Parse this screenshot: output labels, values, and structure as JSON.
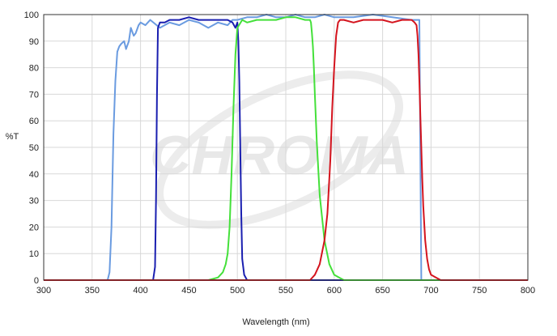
{
  "chart_data": {
    "type": "line",
    "title": "",
    "xlabel": "Wavelength (nm)",
    "ylabel": "%T",
    "xlim": [
      300,
      800
    ],
    "ylim": [
      0,
      100
    ],
    "xticks": [
      "300",
      "350",
      "400",
      "450",
      "500",
      "550",
      "600",
      "650",
      "700",
      "750",
      "800"
    ],
    "yticks": [
      "0",
      "10",
      "20",
      "30",
      "40",
      "50",
      "60",
      "70",
      "80",
      "90",
      "100"
    ],
    "grid": true,
    "legend": "none",
    "watermark": "CHROMA",
    "series": [
      {
        "color": "#6a9be0",
        "x": [
          300,
          366,
          368,
          370,
          372,
          374,
          376,
          378,
          380,
          383,
          385,
          388,
          390,
          393,
          395,
          398,
          400,
          405,
          410,
          420,
          430,
          440,
          450,
          460,
          470,
          480,
          490,
          495,
          500,
          510,
          520,
          530,
          540,
          550,
          560,
          570,
          580,
          590,
          600,
          620,
          640,
          660,
          680,
          688,
          690,
          700,
          800
        ],
        "y": [
          0,
          0,
          3,
          20,
          55,
          75,
          86,
          88,
          89,
          90,
          87,
          90,
          95,
          92,
          93,
          96,
          97,
          96,
          98,
          95,
          97,
          96,
          98,
          97,
          95,
          97,
          96,
          98,
          98,
          99,
          99,
          100,
          99,
          99,
          100,
          99,
          99,
          100,
          99,
          99,
          100,
          99,
          98,
          98,
          0,
          0,
          0
        ]
      },
      {
        "color": "#1a1fb0",
        "x": [
          300,
          413,
          415,
          416,
          417,
          418,
          420,
          425,
          430,
          440,
          450,
          460,
          470,
          480,
          490,
          495,
          498,
          500,
          501,
          502,
          503,
          504,
          505,
          507,
          510,
          800
        ],
        "y": [
          0,
          0,
          5,
          30,
          70,
          95,
          97,
          97,
          98,
          98,
          99,
          98,
          98,
          98,
          98,
          97,
          95,
          97,
          90,
          75,
          50,
          25,
          8,
          2,
          0,
          0
        ],
        "label_note": ""
      },
      {
        "color": "#44e03a",
        "x": [
          300,
          470,
          480,
          485,
          488,
          490,
          492,
          494,
          496,
          498,
          500,
          505,
          510,
          520,
          530,
          540,
          550,
          560,
          570,
          575,
          576,
          577,
          578,
          579,
          580,
          582,
          585,
          590,
          595,
          600,
          605,
          610,
          800
        ],
        "y": [
          0,
          0,
          1,
          3,
          6,
          10,
          20,
          40,
          65,
          85,
          95,
          98,
          97,
          98,
          98,
          98,
          99,
          99,
          98,
          98,
          97,
          93,
          88,
          80,
          70,
          52,
          32,
          15,
          6,
          2,
          1,
          0,
          0
        ]
      },
      {
        "color": "#d4141e",
        "x": [
          300,
          575,
          580,
          585,
          590,
          593,
          596,
          598,
          600,
          602,
          604,
          606,
          610,
          620,
          630,
          640,
          650,
          660,
          670,
          680,
          683,
          685,
          686,
          687,
          688,
          689,
          690,
          691,
          692,
          694,
          696,
          698,
          700,
          705,
          710,
          800
        ],
        "y": [
          0,
          0,
          2,
          6,
          15,
          25,
          45,
          65,
          80,
          92,
          97,
          98,
          98,
          97,
          98,
          98,
          98,
          97,
          98,
          98,
          97,
          96,
          92,
          85,
          75,
          62,
          50,
          38,
          28,
          15,
          8,
          4,
          2,
          1,
          0,
          0
        ]
      }
    ]
  }
}
